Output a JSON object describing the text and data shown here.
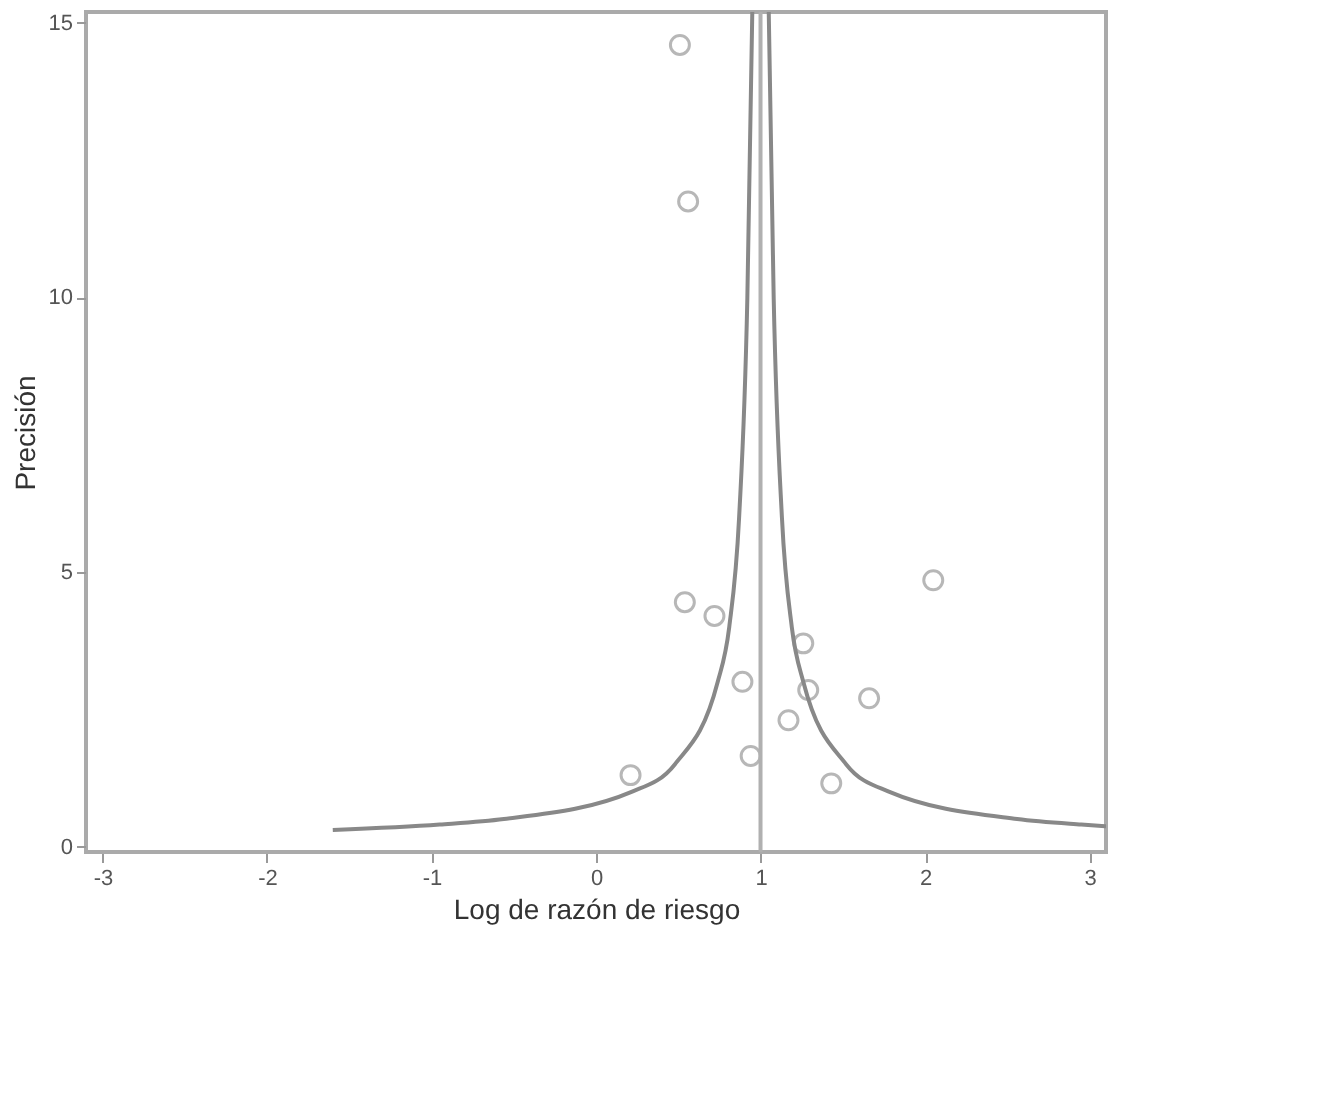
{
  "chart_data": {
    "type": "scatter",
    "xlabel": "Log de razón de riesgo",
    "ylabel": "Precisión",
    "xlim": [
      -3.1,
      3.1
    ],
    "ylim": [
      -0.1,
      15.2
    ],
    "xticks": [
      -3,
      -2,
      -1,
      0,
      1,
      2,
      3
    ],
    "yticks": [
      0,
      5,
      10,
      15
    ],
    "grid": false,
    "ref_lines": [
      {
        "axis": "x",
        "value": 1,
        "color": "#b0b0b0"
      }
    ],
    "series": [
      {
        "marker": "circle",
        "color": "#999999",
        "x": [
          0.51,
          0.56,
          0.54,
          0.72,
          2.05,
          0.89,
          1.26,
          1.29,
          1.66,
          1.17,
          0.94,
          1.43,
          0.21
        ],
        "values": [
          14.6,
          11.75,
          4.45,
          4.2,
          4.85,
          3.0,
          3.7,
          2.85,
          2.7,
          2.3,
          1.65,
          1.15,
          1.3
        ]
      },
      {
        "type": "line",
        "marker": "none",
        "color": "#888888",
        "x": [
          -1.6,
          -0.95,
          -0.56,
          0.22,
          0.48,
          0.74,
          0.81,
          0.87,
          0.92,
          0.95
        ],
        "values": [
          0.3,
          0.4,
          0.5,
          1.0,
          1.5,
          3.0,
          4.0,
          6.0,
          10.0,
          15.2
        ]
      },
      {
        "type": "line",
        "marker": "none",
        "color": "#888888",
        "x": [
          3.1,
          2.95,
          2.56,
          1.78,
          1.52,
          1.26,
          1.19,
          1.13,
          1.08,
          1.05
        ],
        "values": [
          0.37,
          0.4,
          0.5,
          1.0,
          1.5,
          3.0,
          4.0,
          6.0,
          10.0,
          15.2
        ]
      }
    ]
  }
}
